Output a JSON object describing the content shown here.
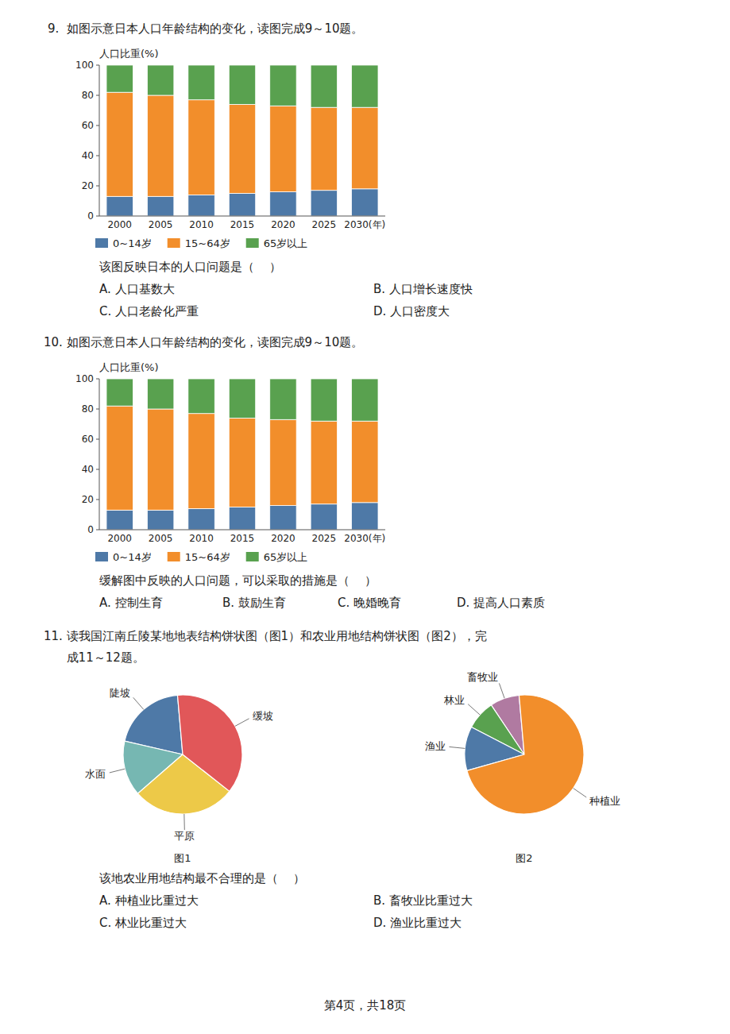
{
  "chart_data": [
    {
      "type": "bar",
      "stacked": true,
      "y_label": "人口比重(%)",
      "categories": [
        "2000",
        "2005",
        "2010",
        "2015",
        "2020",
        "2025",
        "2030(年)"
      ],
      "series": [
        {
          "name": "0~14岁",
          "color": "#4e79a7",
          "values": [
            13,
            13,
            14,
            15,
            16,
            17,
            18
          ]
        },
        {
          "name": "15~64岁",
          "color": "#f28e2b",
          "values": [
            69,
            67,
            63,
            59,
            57,
            55,
            54
          ]
        },
        {
          "name": "65岁以上",
          "color": "#59a14f",
          "values": [
            18,
            20,
            23,
            26,
            27,
            28,
            28
          ]
        }
      ],
      "ylim": [
        0,
        100
      ],
      "yticks": [
        0,
        20,
        40,
        60,
        80,
        100
      ],
      "grid": false,
      "legend": "bottom",
      "annotations": [
        "9.  如图示意日本人口年龄结构的变化，读图完成9～10题。",
        "该图反映日本的人口问题是（    ）",
        "A. 人口基数大",
        "B. 人口增长速度快",
        "C. 人口老龄化严重",
        "D. 人口密度大"
      ]
    },
    {
      "type": "bar",
      "stacked": true,
      "y_label": "人口比重(%)",
      "categories": [
        "2000",
        "2005",
        "2010",
        "2015",
        "2020",
        "2025",
        "2030(年)"
      ],
      "series": [
        {
          "name": "0~14岁",
          "color": "#4e79a7",
          "values": [
            13,
            13,
            14,
            15,
            16,
            17,
            18
          ]
        },
        {
          "name": "15~64岁",
          "color": "#f28e2b",
          "values": [
            69,
            67,
            63,
            59,
            57,
            55,
            54
          ]
        },
        {
          "name": "65岁以上",
          "color": "#59a14f",
          "values": [
            18,
            20,
            23,
            26,
            27,
            28,
            28
          ]
        }
      ],
      "ylim": [
        0,
        100
      ],
      "yticks": [
        0,
        20,
        40,
        60,
        80,
        100
      ],
      "grid": false,
      "legend": "bottom",
      "annotations": [
        "10. 如图示意日本人口年龄结构的变化，读图完成9～10题。",
        "缓解图中反映的人口问题，可以采取的措施是（    ）",
        "A. 控制生育",
        "B. 鼓励生育",
        "C. 晚婚晚育",
        "D. 提高人口素质"
      ]
    },
    {
      "type": "pie",
      "title": "图1",
      "categories": [
        "陡坡",
        "水面",
        "平原",
        "缓坡"
      ],
      "values": [
        20,
        15,
        28,
        37
      ],
      "colors": [
        "#4e79a7",
        "#76b7b2",
        "#edc948",
        "#e15759"
      ],
      "annotations": [
        "11. 读我国江南丘陵某地地表结构饼状图（图1）和农业用地结构饼状图（图2），完",
        "      成11～12题。"
      ]
    },
    {
      "type": "pie",
      "title": "图2",
      "categories": [
        "畜牧业",
        "林业",
        "渔业",
        "种植业"
      ],
      "values": [
        8,
        8,
        12,
        72
      ],
      "colors": [
        "#b07aa1",
        "#59a14f",
        "#4e79a7",
        "#f28e2b"
      ],
      "annotations": [
        "该地农业用地结构最不合理的是（    ）",
        "A. 种植业比重过大",
        "B. 畜牧业比重过大",
        "C. 林业比重过大",
        "D. 渔业比重过大",
        "第4页，共18页"
      ]
    }
  ]
}
